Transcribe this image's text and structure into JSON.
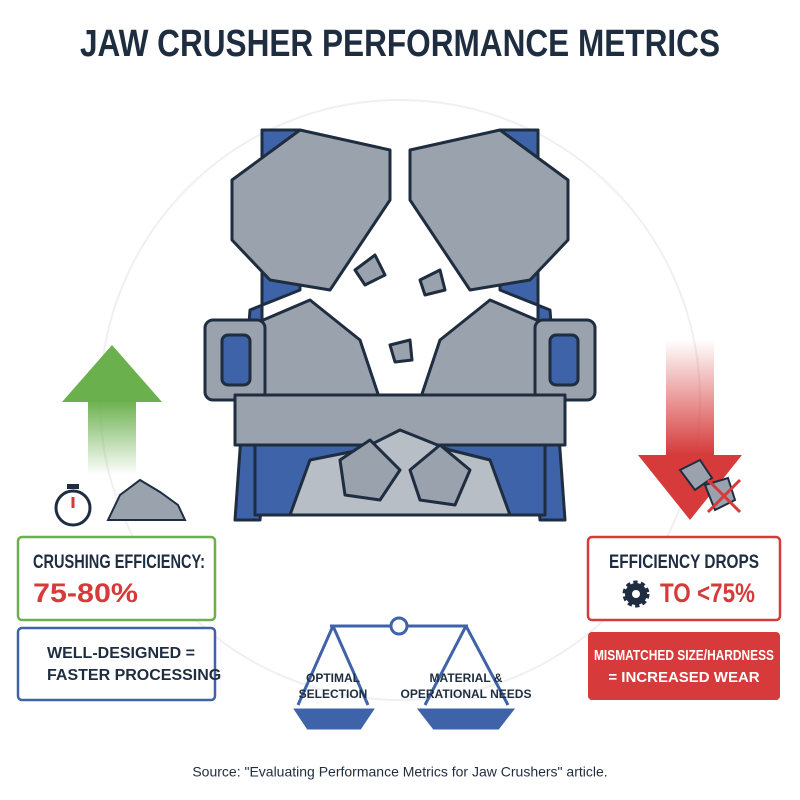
{
  "title": "JAW CRUSHER PERFORMANCE METRICS",
  "left": {
    "metric": {
      "label": "CRUSHING EFFICIENCY:",
      "value": "75-80%"
    },
    "note": {
      "lines": [
        "WELL-DESIGNED =",
        "FASTER PROCESSING"
      ]
    }
  },
  "right": {
    "metric": {
      "label": "EFFICIENCY DROPS",
      "value": "TO <75%"
    },
    "note": {
      "lines": [
        "MISMATCHED SIZE/HARDNESS",
        "= INCREASED WEAR"
      ]
    }
  },
  "balance": {
    "left": [
      "OPTIMAL",
      "SELECTION"
    ],
    "right": [
      "MATERIAL &",
      "OPERATIONAL NEEDS"
    ]
  },
  "source": "Source: \"Evaluating Performance Metrics for Jaw Crushers\" article."
}
